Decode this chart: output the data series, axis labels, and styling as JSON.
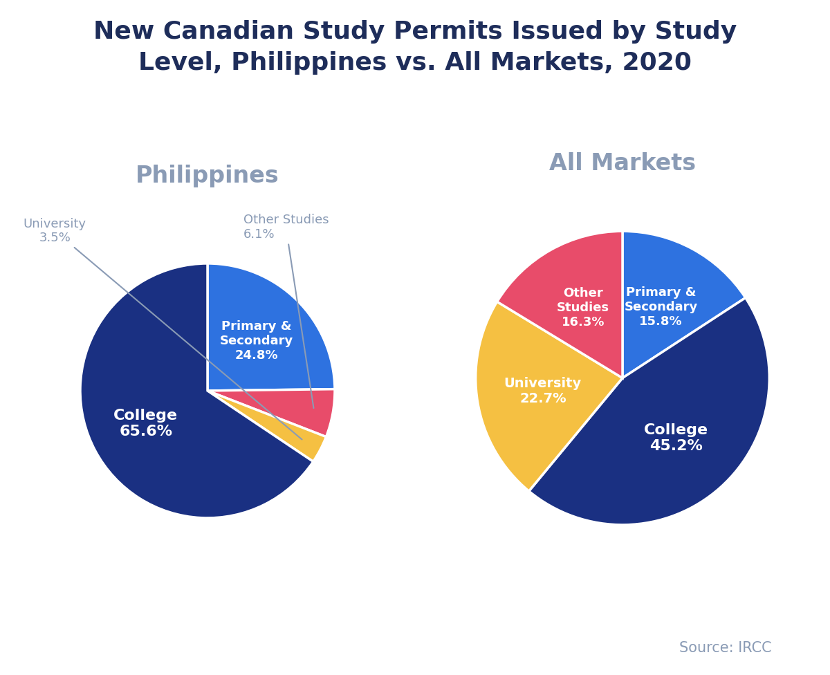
{
  "title": "New Canadian Study Permits Issued by Study\nLevel, Philippines vs. All Markets, 2020",
  "title_color": "#1e2d5a",
  "title_fontsize": 26,
  "subtitle_left": "Philippines",
  "subtitle_right": "All Markets",
  "subtitle_color": "#8a9bb5",
  "subtitle_fontsize": 24,
  "source_text": "Source: IRCC",
  "source_color": "#8a9bb5",
  "source_fontsize": 15,
  "background_color": "#ffffff",
  "philippines": {
    "values": [
      24.8,
      6.1,
      3.5,
      65.6
    ],
    "colors": [
      "#2e72e0",
      "#e84c6a",
      "#f5c042",
      "#1a3082"
    ],
    "startangle": 90
  },
  "all_markets": {
    "values": [
      15.8,
      45.2,
      22.7,
      16.3
    ],
    "colors": [
      "#2e72e0",
      "#1a3082",
      "#f5c042",
      "#e84c6a"
    ],
    "startangle": 90
  }
}
